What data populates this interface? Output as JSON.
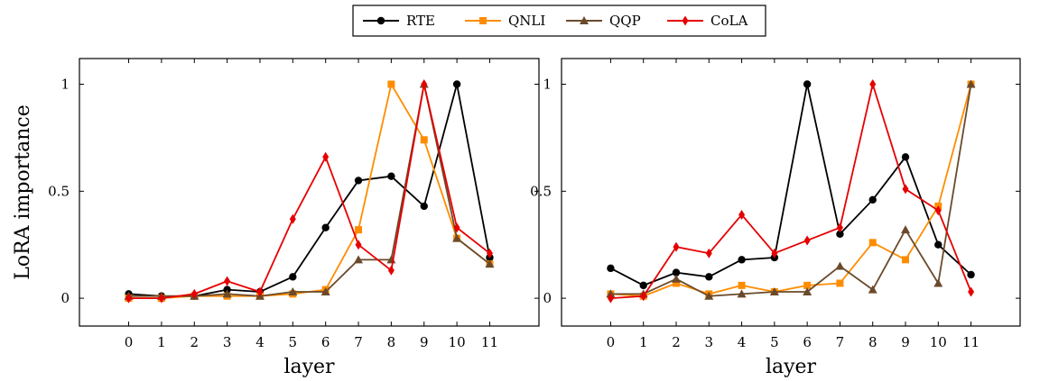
{
  "chart_data": {
    "type": "line",
    "legend": {
      "placement": "top-center",
      "entries": [
        {
          "name": "RTE",
          "color": "#000000",
          "marker": "circle"
        },
        {
          "name": "QNLI",
          "color": "#ff8c00",
          "marker": "square"
        },
        {
          "name": "QQP",
          "color": "#6b4a2b",
          "marker": "triangle"
        },
        {
          "name": "CoLA",
          "color": "#e60000",
          "marker": "diamond"
        }
      ]
    },
    "panels": [
      {
        "xlabel": "layer",
        "ylabel": "LoRA importance",
        "x": [
          0,
          1,
          2,
          3,
          4,
          5,
          6,
          7,
          8,
          9,
          10,
          11
        ],
        "xlim": [
          -1.5,
          12.5
        ],
        "ylim": [
          -0.13,
          1.12
        ],
        "yticks": [
          0,
          0.5,
          1
        ],
        "ytick_labels": [
          "0",
          "0.5",
          "1"
        ],
        "series": [
          {
            "name": "RTE",
            "values": [
              0.02,
              0.01,
              0.01,
              0.04,
              0.03,
              0.1,
              0.33,
              0.55,
              0.57,
              0.43,
              1.0,
              0.19
            ]
          },
          {
            "name": "QNLI",
            "values": [
              0.0,
              0.0,
              0.01,
              0.01,
              0.01,
              0.02,
              0.04,
              0.32,
              1.0,
              0.74,
              0.28,
              0.16
            ]
          },
          {
            "name": "QQP",
            "values": [
              0.01,
              0.01,
              0.01,
              0.02,
              0.01,
              0.03,
              0.03,
              0.18,
              0.18,
              1.0,
              0.28,
              0.16
            ]
          },
          {
            "name": "CoLA",
            "values": [
              0.0,
              0.0,
              0.02,
              0.08,
              0.03,
              0.37,
              0.66,
              0.25,
              0.13,
              1.0,
              0.33,
              0.21
            ]
          }
        ]
      },
      {
        "xlabel": "layer",
        "ylabel": "",
        "x": [
          0,
          1,
          2,
          3,
          4,
          5,
          6,
          7,
          8,
          9,
          10,
          11
        ],
        "xlim": [
          -1.5,
          12.5
        ],
        "ylim": [
          -0.13,
          1.12
        ],
        "yticks": [
          0,
          0.5,
          1
        ],
        "ytick_labels": [
          "0",
          "0.5",
          "1"
        ],
        "series": [
          {
            "name": "RTE",
            "values": [
              0.14,
              0.06,
              0.12,
              0.1,
              0.18,
              0.19,
              1.0,
              0.3,
              0.46,
              0.66,
              0.25,
              0.11
            ]
          },
          {
            "name": "QNLI",
            "values": [
              0.02,
              0.01,
              0.07,
              0.02,
              0.06,
              0.03,
              0.06,
              0.07,
              0.26,
              0.18,
              0.43,
              1.0
            ]
          },
          {
            "name": "QQP",
            "values": [
              0.02,
              0.02,
              0.09,
              0.01,
              0.02,
              0.03,
              0.03,
              0.15,
              0.04,
              0.32,
              0.07,
              1.0
            ]
          },
          {
            "name": "CoLA",
            "values": [
              0.0,
              0.01,
              0.24,
              0.21,
              0.39,
              0.21,
              0.27,
              0.33,
              1.0,
              0.51,
              0.41,
              0.03
            ]
          }
        ]
      }
    ]
  }
}
